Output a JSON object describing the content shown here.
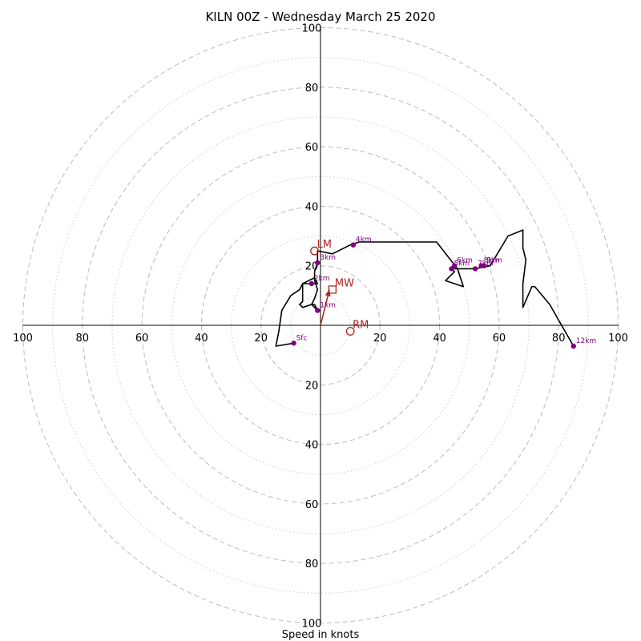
{
  "chart_data": {
    "type": "hodograph",
    "title": "KILN 00Z - Wednesday March 25 2020",
    "xlabel": "Speed in knots",
    "range": [
      -100,
      100
    ],
    "rings_dashed": [
      20,
      40,
      60,
      80,
      100
    ],
    "rings_dotted": [
      10,
      30,
      50,
      70,
      90
    ],
    "x_ticks": [
      "100",
      "80",
      "60",
      "40",
      "20",
      "20",
      "40",
      "60",
      "80",
      "100"
    ],
    "y_ticks": [
      "100",
      "80",
      "60",
      "40",
      "20",
      "20",
      "40",
      "60",
      "80",
      "100"
    ],
    "colors": {
      "line": "#000000",
      "height_marker": "#800080",
      "motion": "#b22222",
      "grid": "#bbbbbb"
    },
    "hodograph_line": [
      [
        -9,
        -6
      ],
      [
        -15,
        -7
      ],
      [
        -14,
        -2
      ],
      [
        -13,
        5
      ],
      [
        -10,
        10
      ],
      [
        -7,
        12
      ],
      [
        -6,
        14
      ],
      [
        -4,
        15
      ],
      [
        -2,
        16
      ],
      [
        -1,
        14
      ],
      [
        -6,
        14
      ],
      [
        -6,
        8
      ],
      [
        -7,
        7
      ],
      [
        -6,
        6
      ],
      [
        -3,
        7
      ],
      [
        -2,
        7
      ],
      [
        -1,
        5
      ],
      [
        -2,
        6
      ],
      [
        -3,
        7
      ],
      [
        -2,
        9
      ],
      [
        -1,
        12
      ],
      [
        -2,
        15
      ],
      [
        -2,
        18
      ],
      [
        -1,
        21
      ],
      [
        -1,
        25
      ],
      [
        4,
        24
      ],
      [
        10,
        27
      ],
      [
        13,
        28
      ],
      [
        39,
        28
      ],
      [
        46,
        19
      ],
      [
        48,
        13
      ],
      [
        42,
        15
      ],
      [
        45,
        18
      ],
      [
        44,
        19
      ],
      [
        48,
        19
      ],
      [
        52,
        19
      ],
      [
        57,
        20
      ],
      [
        63,
        30
      ],
      [
        68,
        32
      ],
      [
        68,
        26
      ],
      [
        69,
        22
      ],
      [
        68,
        14
      ],
      [
        68,
        6
      ],
      [
        71,
        13
      ],
      [
        72,
        13
      ],
      [
        77,
        7
      ],
      [
        81,
        0
      ],
      [
        85,
        -7
      ]
    ],
    "height_markers": [
      {
        "label": "Sfc",
        "u": -9,
        "v": -6
      },
      {
        "label": "1km",
        "u": -1,
        "v": 5
      },
      {
        "label": "2km",
        "u": -3,
        "v": 14
      },
      {
        "label": "3km",
        "u": -1,
        "v": 21
      },
      {
        "label": "4km",
        "u": 11,
        "v": 27
      },
      {
        "label": "5km",
        "u": 44,
        "v": 19
      },
      {
        "label": "6km",
        "u": 45,
        "v": 20
      },
      {
        "label": "7km",
        "u": 52,
        "v": 19
      },
      {
        "label": "8km",
        "u": 54,
        "v": 20
      },
      {
        "label": "9km",
        "u": 55,
        "v": 20
      },
      {
        "label": "12km",
        "u": 85,
        "v": -7
      }
    ],
    "storm_motions": [
      {
        "label": "LM",
        "u": -2,
        "v": 25,
        "marker": "circle"
      },
      {
        "label": "RM",
        "u": 10,
        "v": -2,
        "marker": "circle"
      },
      {
        "label": "MW",
        "u": 4,
        "v": 12,
        "marker": "square"
      }
    ],
    "shear_vector": {
      "from": [
        0,
        0
      ],
      "to": [
        3,
        12
      ]
    }
  }
}
